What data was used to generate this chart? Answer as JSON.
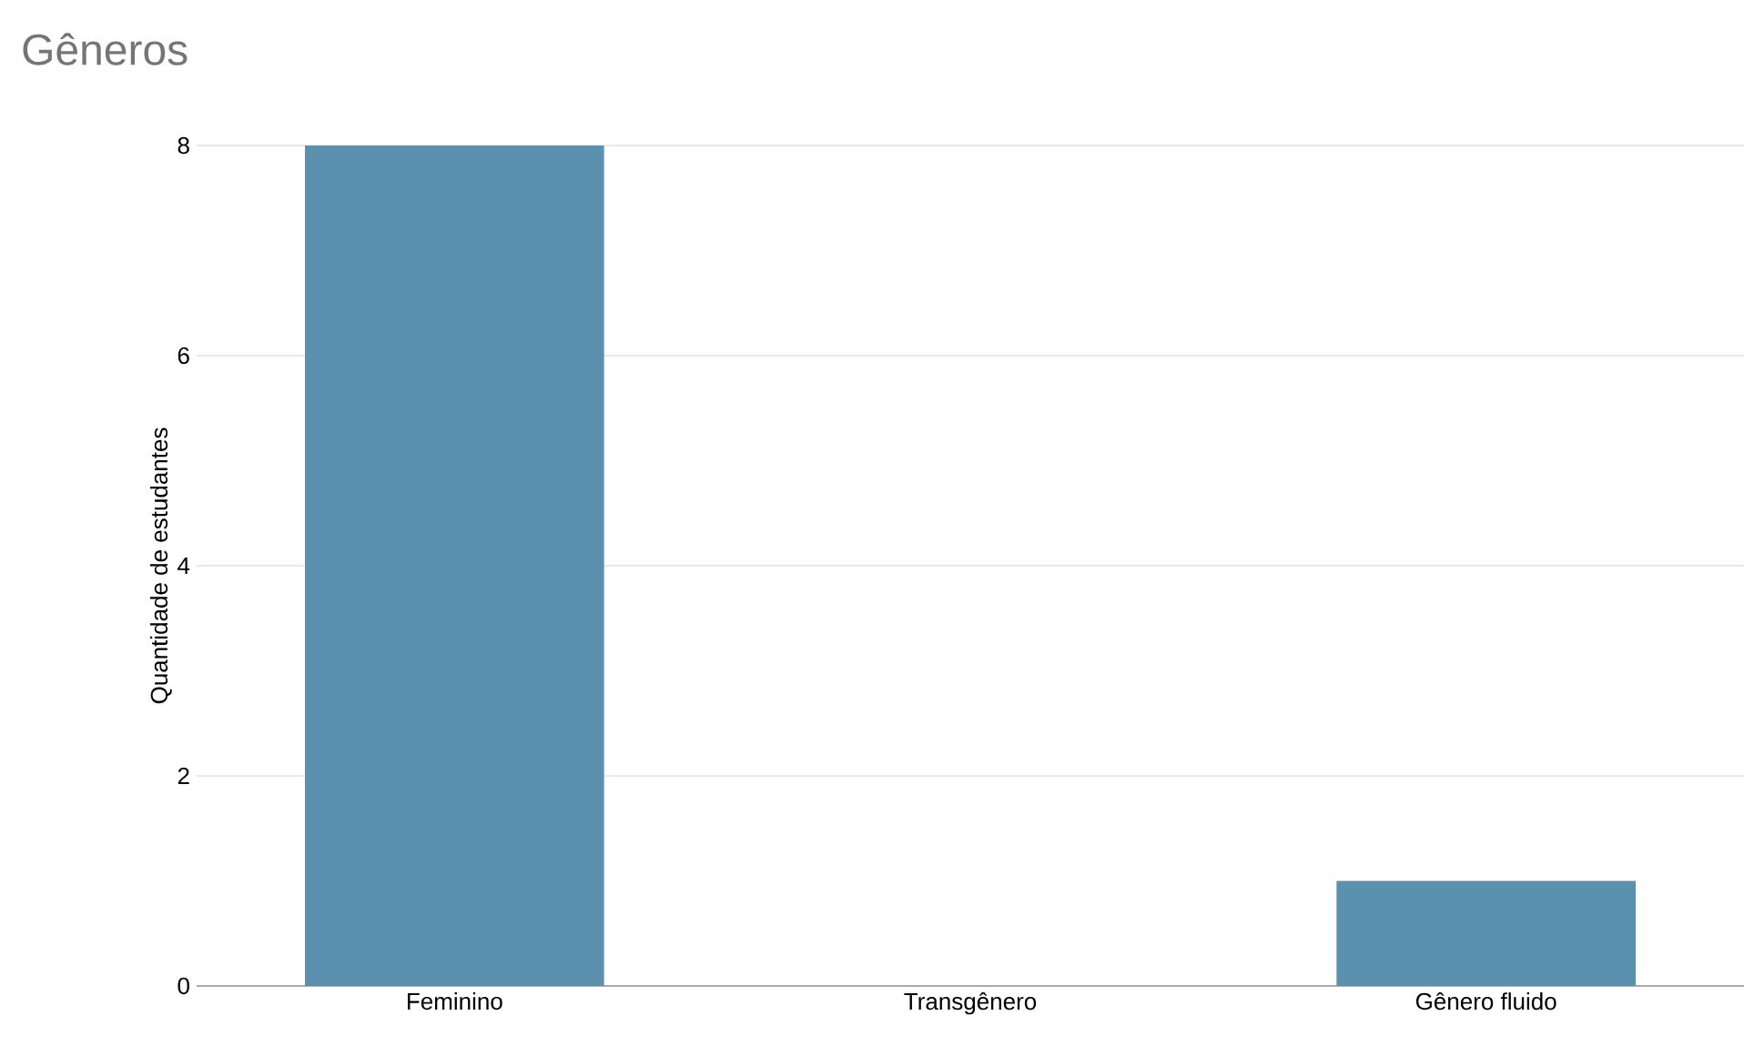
{
  "chart_data": {
    "type": "bar",
    "title": "Gêneros",
    "ylabel": "Quantidade de estudantes",
    "categories": [
      "Feminino",
      "Transgênero",
      "Gênero fluido"
    ],
    "values": [
      8,
      0,
      1
    ],
    "color": "#5b91ae",
    "ylim": [
      0,
      8
    ],
    "yticks": [
      0,
      2,
      4,
      6,
      8
    ],
    "grid": "y"
  }
}
